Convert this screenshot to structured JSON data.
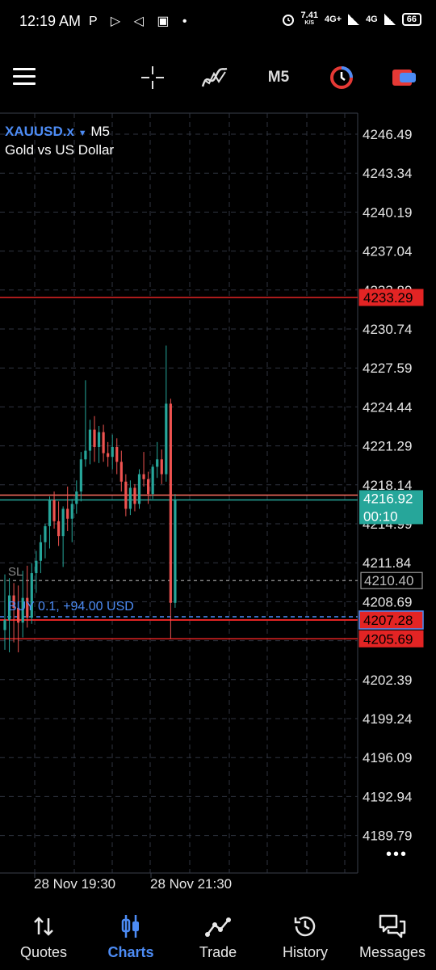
{
  "status_bar": {
    "time": "12:19 AM",
    "notification_icons": "P ▷ ◁ ▣ •",
    "net_speed": "7.41",
    "net_speed_unit": "K/S",
    "network_1": "4G+",
    "network_2": "4G",
    "battery": "66"
  },
  "toolbar": {
    "timeframe": "M5"
  },
  "chart": {
    "symbol": "XAUUSD.x",
    "timeframe": "M5",
    "description": "Gold vs US Dollar",
    "price_labels": [
      "4246.49",
      "4243.34",
      "4240.19",
      "4237.04",
      "4233.89",
      "4230.74",
      "4227.59",
      "4224.44",
      "4221.29",
      "4218.14",
      "4214.99",
      "4211.84",
      "4208.69",
      "4205.54",
      "4202.39",
      "4199.24",
      "4196.09",
      "4192.94",
      "4189.79"
    ],
    "time_labels": [
      "28 Nov 19:30",
      "28 Nov 21:30"
    ],
    "lines": {
      "tp_price": "4233.29",
      "current_price": "4216.92",
      "countdown": "00:10",
      "sl_price": "4210.40",
      "sl_label": "SL",
      "entry_price": "4207.28",
      "entry_label": "BUY 0.1,   +94.00 USD",
      "low_price": "4205.69"
    },
    "colors": {
      "bull": "#26a69a",
      "bear": "#ef5350",
      "grid": "#2f3440",
      "red_line": "#e32424",
      "current_line": "#26a69a",
      "entry_line": "#4d8cf5"
    },
    "candles": [
      {
        "o": 4206.4,
        "h": 4210.9,
        "l": 4204.8,
        "c": 4207.2
      },
      {
        "o": 4207.2,
        "h": 4210.6,
        "l": 4204.6,
        "c": 4209.2
      },
      {
        "o": 4209.2,
        "h": 4210.2,
        "l": 4205.4,
        "c": 4208.2
      },
      {
        "o": 4208.2,
        "h": 4210.0,
        "l": 4204.6,
        "c": 4207.0
      },
      {
        "o": 4207.0,
        "h": 4211.2,
        "l": 4205.8,
        "c": 4209.0
      },
      {
        "o": 4209.0,
        "h": 4211.6,
        "l": 4206.6,
        "c": 4207.4
      },
      {
        "o": 4207.4,
        "h": 4211.8,
        "l": 4206.9,
        "c": 4211.0
      },
      {
        "o": 4211.0,
        "h": 4212.8,
        "l": 4209.4,
        "c": 4212.0
      },
      {
        "o": 4212.0,
        "h": 4214.1,
        "l": 4211.0,
        "c": 4213.5
      },
      {
        "o": 4213.5,
        "h": 4215.0,
        "l": 4212.2,
        "c": 4214.8
      },
      {
        "o": 4214.8,
        "h": 4217.2,
        "l": 4213.0,
        "c": 4216.9
      },
      {
        "o": 4216.9,
        "h": 4217.6,
        "l": 4214.6,
        "c": 4215.2
      },
      {
        "o": 4215.2,
        "h": 4216.8,
        "l": 4213.2,
        "c": 4214.0
      },
      {
        "o": 4214.0,
        "h": 4216.4,
        "l": 4211.5,
        "c": 4216.2
      },
      {
        "o": 4216.2,
        "h": 4218.0,
        "l": 4214.4,
        "c": 4215.4
      },
      {
        "o": 4215.4,
        "h": 4217.0,
        "l": 4213.5,
        "c": 4216.6
      },
      {
        "o": 4216.6,
        "h": 4218.5,
        "l": 4215.8,
        "c": 4217.6
      },
      {
        "o": 4217.6,
        "h": 4220.8,
        "l": 4216.8,
        "c": 4220.2
      },
      {
        "o": 4220.2,
        "h": 4226.6,
        "l": 4219.6,
        "c": 4220.9
      },
      {
        "o": 4220.9,
        "h": 4223.4,
        "l": 4219.8,
        "c": 4222.6
      },
      {
        "o": 4222.6,
        "h": 4223.7,
        "l": 4220.0,
        "c": 4221.2
      },
      {
        "o": 4221.2,
        "h": 4222.9,
        "l": 4219.9,
        "c": 4222.4
      },
      {
        "o": 4222.4,
        "h": 4223.0,
        "l": 4220.0,
        "c": 4220.7
      },
      {
        "o": 4220.7,
        "h": 4221.6,
        "l": 4219.6,
        "c": 4220.4
      },
      {
        "o": 4220.4,
        "h": 4222.2,
        "l": 4219.4,
        "c": 4221.2
      },
      {
        "o": 4221.2,
        "h": 4221.9,
        "l": 4219.0,
        "c": 4220.0
      },
      {
        "o": 4220.0,
        "h": 4220.9,
        "l": 4217.6,
        "c": 4218.4
      },
      {
        "o": 4218.4,
        "h": 4219.0,
        "l": 4215.6,
        "c": 4216.2
      },
      {
        "o": 4216.2,
        "h": 4218.5,
        "l": 4215.7,
        "c": 4217.9
      },
      {
        "o": 4217.9,
        "h": 4218.2,
        "l": 4216.0,
        "c": 4216.6
      },
      {
        "o": 4216.6,
        "h": 4219.4,
        "l": 4216.2,
        "c": 4219.0
      },
      {
        "o": 4219.0,
        "h": 4220.8,
        "l": 4218.0,
        "c": 4218.6
      },
      {
        "o": 4218.6,
        "h": 4219.2,
        "l": 4216.6,
        "c": 4217.4
      },
      {
        "o": 4217.4,
        "h": 4219.8,
        "l": 4217.0,
        "c": 4219.6
      },
      {
        "o": 4219.6,
        "h": 4221.6,
        "l": 4218.7,
        "c": 4220.2
      },
      {
        "o": 4220.2,
        "h": 4221.0,
        "l": 4218.2,
        "c": 4219.0
      },
      {
        "o": 4219.0,
        "h": 4229.4,
        "l": 4218.4,
        "c": 4224.7
      },
      {
        "o": 4224.7,
        "h": 4225.1,
        "l": 4205.7,
        "c": 4208.6
      },
      {
        "o": 4208.6,
        "h": 4217.4,
        "l": 4208.2,
        "c": 4216.9
      }
    ]
  },
  "nav": {
    "items": [
      {
        "label": "Quotes"
      },
      {
        "label": "Charts"
      },
      {
        "label": "Trade"
      },
      {
        "label": "History"
      },
      {
        "label": "Messages"
      }
    ]
  }
}
